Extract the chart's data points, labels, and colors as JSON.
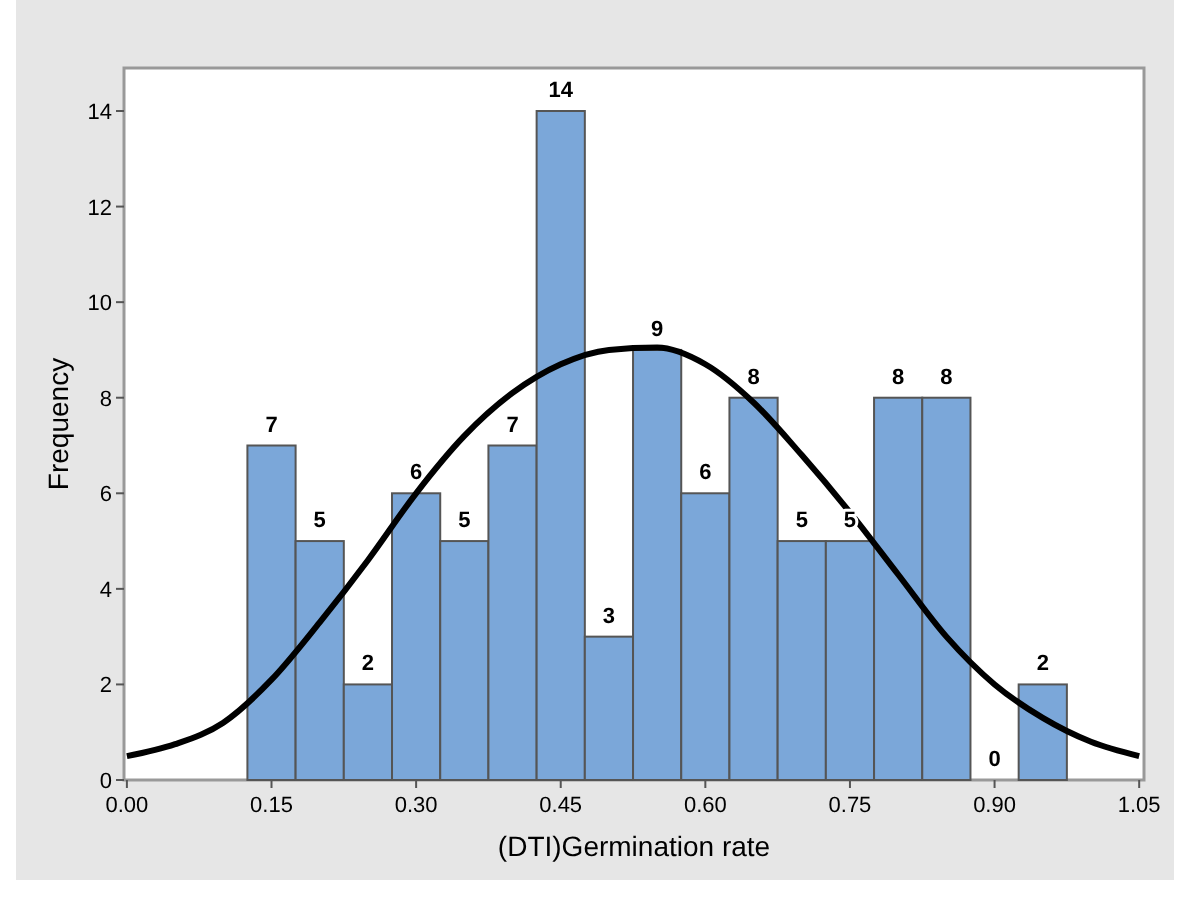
{
  "chart_data": {
    "type": "histogram",
    "xlabel": "(DTI)Germination rate",
    "ylabel": "Frequency",
    "bins": [
      0.125,
      0.175,
      0.225,
      0.275,
      0.325,
      0.375,
      0.425,
      0.475,
      0.525,
      0.575,
      0.625,
      0.675,
      0.725,
      0.775,
      0.825,
      0.875,
      0.925,
      0.975
    ],
    "values": [
      7,
      5,
      2,
      6,
      5,
      7,
      14,
      3,
      9,
      6,
      8,
      5,
      5,
      8,
      8,
      0,
      2
    ],
    "color": "#7ba7d9",
    "value_labels": [
      "7",
      "5",
      "2",
      "6",
      "5",
      "7",
      "14",
      "3",
      "9",
      "6",
      "8",
      "5",
      "5",
      "8",
      "8",
      "0",
      "2"
    ],
    "xlim": [
      -0.003,
      1.055
    ],
    "xticks": [
      {
        "value": 0,
        "label": "0.00"
      },
      {
        "value": 0.15,
        "label": "0.15"
      },
      {
        "value": 0.3,
        "label": "0.30"
      },
      {
        "value": 0.45,
        "label": "0.45"
      },
      {
        "value": 0.6,
        "label": "0.60"
      },
      {
        "value": 0.75,
        "label": "0.75"
      },
      {
        "value": 0.9,
        "label": "0.90"
      },
      {
        "value": 1.05,
        "label": "1.05"
      }
    ],
    "ylim": [
      0,
      14.9
    ],
    "yticks": [
      0,
      2,
      4,
      6,
      8,
      10,
      12,
      14
    ],
    "series": [
      {
        "type": "line",
        "color": "#000000",
        "x": [
          0,
          0.05,
          0.1,
          0.15,
          0.2,
          0.25,
          0.3,
          0.35,
          0.4,
          0.45,
          0.5,
          0.55,
          0.6,
          0.65,
          0.7,
          0.75,
          0.8,
          0.85,
          0.9,
          0.95,
          1.0,
          1.05
        ],
        "values": [
          0.5,
          0.75,
          1.2,
          2.1,
          3.3,
          4.6,
          6.0,
          7.2,
          8.1,
          8.7,
          9.0,
          9.05,
          8.7,
          7.9,
          6.8,
          5.6,
          4.3,
          3.0,
          2.0,
          1.3,
          0.8,
          0.5
        ]
      }
    ]
  }
}
